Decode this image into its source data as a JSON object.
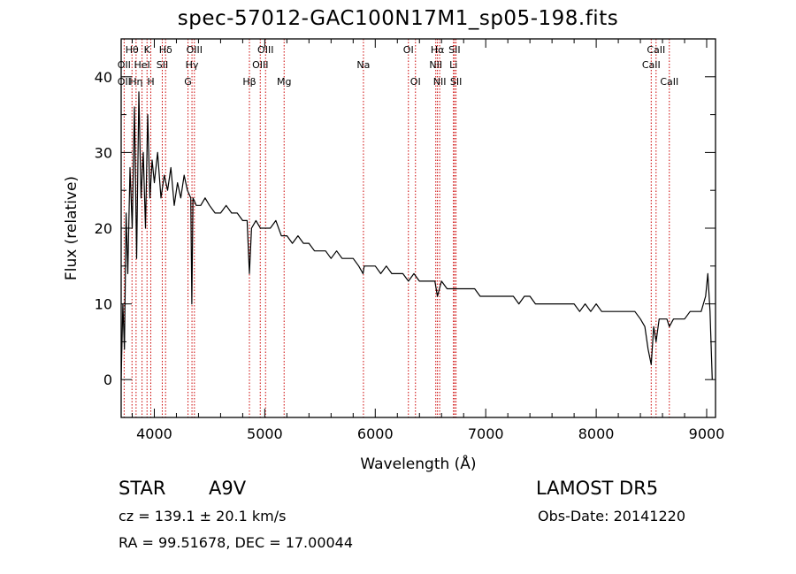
{
  "title": "spec-57012-GAC100N17M1_sp05-198.fits",
  "info": {
    "class": "STAR",
    "subclass": "A9V",
    "survey": "LAMOST DR5",
    "cz": "cz = 139.1 ± 20.1 km/s",
    "obs_date": "Obs-Date: 20141220",
    "radec": "RA =  99.51678, DEC =  17.00044"
  },
  "chart_data": {
    "type": "line",
    "xlabel": "Wavelength (Å)",
    "ylabel": "Flux (relative)",
    "xlim": [
      3700,
      9080
    ],
    "ylim": [
      -5,
      45
    ],
    "xticks": [
      4000,
      5000,
      6000,
      7000,
      8000,
      9000
    ],
    "yticks": [
      0,
      10,
      20,
      30,
      40
    ],
    "grid": false,
    "line_color": "#000000",
    "marker_color": "#cc0000",
    "series": [
      {
        "x": [
          3700,
          3715,
          3730,
          3745,
          3760,
          3780,
          3800,
          3820,
          3840,
          3860,
          3880,
          3900,
          3920,
          3940,
          3960,
          3980,
          4000,
          4030,
          4060,
          4090,
          4120,
          4150,
          4180,
          4210,
          4240,
          4270,
          4300,
          4330,
          4340,
          4350,
          4380,
          4420,
          4460,
          4500,
          4550,
          4600,
          4650,
          4700,
          4750,
          4800,
          4840,
          4861,
          4880,
          4920,
          4960,
          5000,
          5050,
          5100,
          5150,
          5200,
          5250,
          5300,
          5350,
          5400,
          5450,
          5500,
          5550,
          5600,
          5650,
          5700,
          5750,
          5800,
          5850,
          5890,
          5900,
          5950,
          6000,
          6050,
          6100,
          6150,
          6200,
          6250,
          6300,
          6350,
          6400,
          6450,
          6500,
          6540,
          6563,
          6600,
          6650,
          6700,
          6750,
          6800,
          6850,
          6900,
          6950,
          7000,
          7050,
          7100,
          7150,
          7200,
          7250,
          7300,
          7350,
          7400,
          7450,
          7500,
          7550,
          7600,
          7650,
          7700,
          7750,
          7800,
          7850,
          7900,
          7950,
          8000,
          8050,
          8100,
          8150,
          8200,
          8250,
          8300,
          8350,
          8400,
          8440,
          8470,
          8498,
          8520,
          8542,
          8570,
          8600,
          8640,
          8662,
          8700,
          8750,
          8800,
          8850,
          8900,
          8950,
          8990,
          9010,
          9030,
          9050
        ],
        "y": [
          0,
          10,
          4,
          22,
          14,
          28,
          20,
          36,
          16,
          38,
          24,
          30,
          20,
          35,
          24,
          29,
          26,
          30,
          24,
          27,
          25,
          28,
          23,
          26,
          24,
          27,
          25,
          24,
          10,
          24,
          23,
          23,
          24,
          23,
          22,
          22,
          23,
          22,
          22,
          21,
          21,
          14,
          20,
          21,
          20,
          20,
          20,
          21,
          19,
          19,
          18,
          19,
          18,
          18,
          17,
          17,
          17,
          16,
          17,
          16,
          16,
          16,
          15,
          14,
          15,
          15,
          15,
          14,
          15,
          14,
          14,
          14,
          13,
          14,
          13,
          13,
          13,
          13,
          11,
          13,
          12,
          12,
          12,
          12,
          12,
          12,
          11,
          11,
          11,
          11,
          11,
          11,
          11,
          10,
          11,
          11,
          10,
          10,
          10,
          10,
          10,
          10,
          10,
          10,
          9,
          10,
          9,
          10,
          9,
          9,
          9,
          9,
          9,
          9,
          9,
          8,
          7,
          4,
          2,
          7,
          5,
          8,
          8,
          8,
          7,
          8,
          8,
          8,
          9,
          9,
          9,
          11,
          14,
          9,
          0
        ]
      }
    ],
    "lines": [
      {
        "name": "Hθ",
        "wl": 3798,
        "row": 0
      },
      {
        "name": "OII",
        "wl": 3727,
        "row": 1
      },
      {
        "name": "OII",
        "wl": 3727,
        "row": 2
      },
      {
        "name": "Hη",
        "wl": 3835,
        "row": 2
      },
      {
        "name": "K",
        "wl": 3934,
        "row": 0
      },
      {
        "name": "HeI",
        "wl": 3889,
        "row": 1
      },
      {
        "name": "H",
        "wl": 3968,
        "row": 2
      },
      {
        "name": "Hδ",
        "wl": 4102,
        "row": 0
      },
      {
        "name": "SII",
        "wl": 4072,
        "row": 1
      },
      {
        "name": "OIII",
        "wl": 4363,
        "row": 0
      },
      {
        "name": "Hγ",
        "wl": 4341,
        "row": 1
      },
      {
        "name": "G",
        "wl": 4305,
        "row": 2
      },
      {
        "name": "Hβ",
        "wl": 4861,
        "row": 2
      },
      {
        "name": "OIII",
        "wl": 5007,
        "row": 0
      },
      {
        "name": "OIII",
        "wl": 4959,
        "row": 1
      },
      {
        "name": "Mg",
        "wl": 5175,
        "row": 2
      },
      {
        "name": "Na",
        "wl": 5893,
        "row": 1
      },
      {
        "name": "OI",
        "wl": 6300,
        "row": 0
      },
      {
        "name": "OI",
        "wl": 6364,
        "row": 2
      },
      {
        "name": "Hα",
        "wl": 6563,
        "row": 0
      },
      {
        "name": "NII",
        "wl": 6548,
        "row": 1
      },
      {
        "name": "NII",
        "wl": 6583,
        "row": 2
      },
      {
        "name": "SII",
        "wl": 6717,
        "row": 0
      },
      {
        "name": "Li",
        "wl": 6708,
        "row": 1
      },
      {
        "name": "SII",
        "wl": 6731,
        "row": 2
      },
      {
        "name": "CaII",
        "wl": 8542,
        "row": 0
      },
      {
        "name": "CaII",
        "wl": 8498,
        "row": 1
      },
      {
        "name": "CaII",
        "wl": 8662,
        "row": 2
      }
    ]
  }
}
